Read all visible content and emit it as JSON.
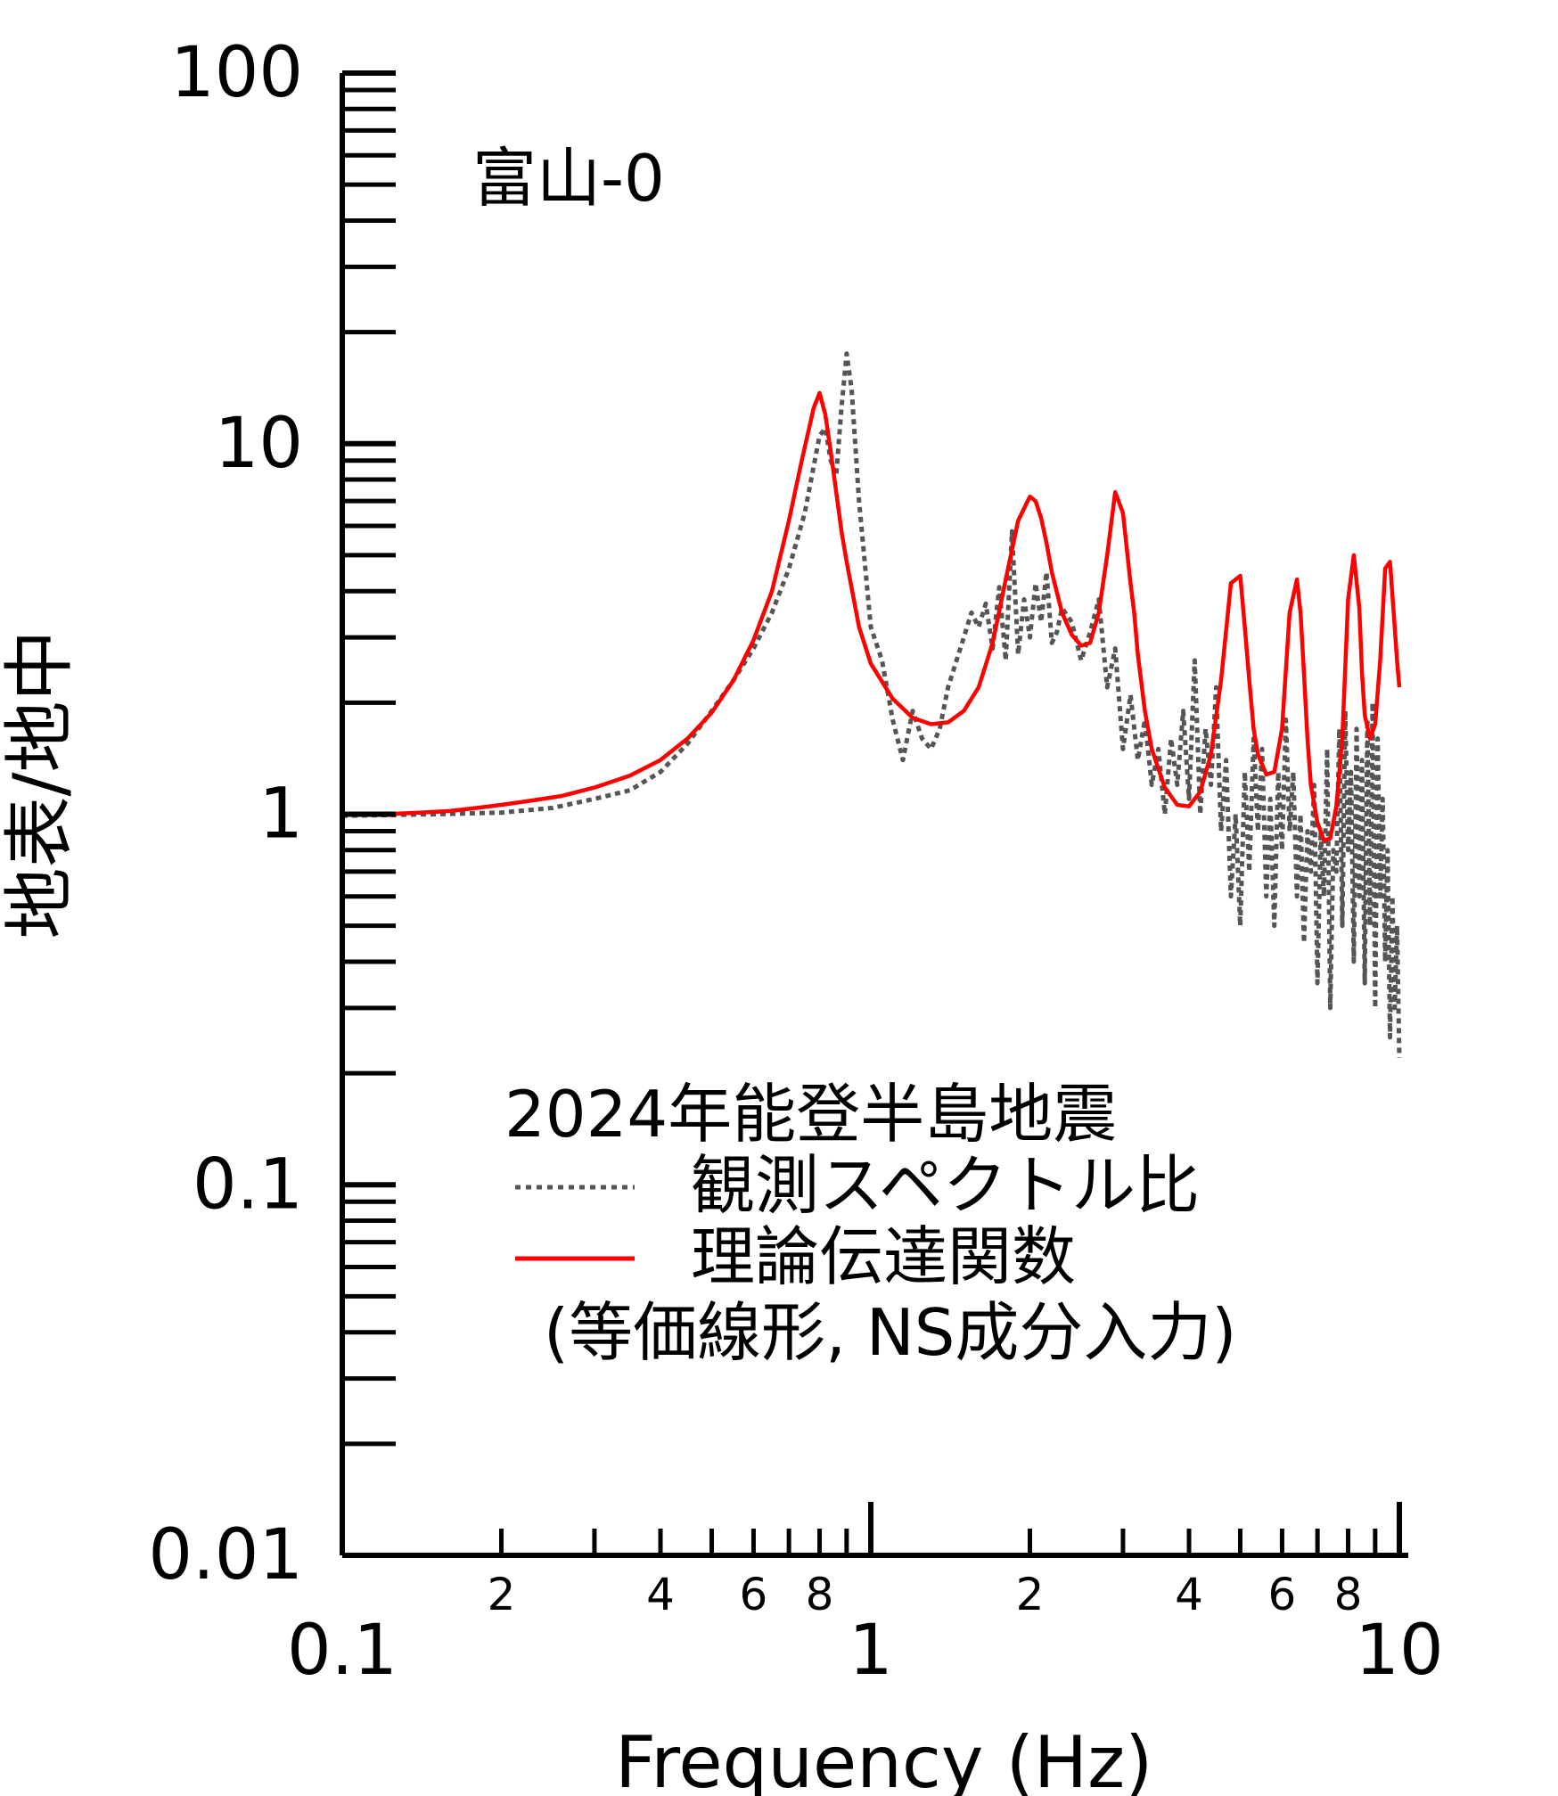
{
  "chart_data": {
    "type": "line",
    "title": "富山-0",
    "xlabel": "Frequency (Hz)",
    "ylabel": "地表/地中",
    "x_scale": "log",
    "y_scale": "log",
    "xlim": [
      0.1,
      10
    ],
    "ylim": [
      0.01,
      100
    ],
    "x_major_ticks": [
      {
        "value": 0.1,
        "label": "0.1"
      },
      {
        "value": 1,
        "label": "1"
      },
      {
        "value": 10,
        "label": "10"
      }
    ],
    "x_minor_labels": [
      {
        "value": 0.2,
        "label": "2"
      },
      {
        "value": 0.4,
        "label": "4"
      },
      {
        "value": 0.6,
        "label": "6"
      },
      {
        "value": 0.8,
        "label": "8"
      },
      {
        "value": 2,
        "label": "2"
      },
      {
        "value": 4,
        "label": "4"
      },
      {
        "value": 6,
        "label": "6"
      },
      {
        "value": 8,
        "label": "8"
      }
    ],
    "y_major_ticks": [
      {
        "value": 100,
        "label": "100"
      },
      {
        "value": 10,
        "label": "10"
      },
      {
        "value": 1,
        "label": "1"
      },
      {
        "value": 0.1,
        "label": "0.1"
      },
      {
        "value": 0.01,
        "label": "0.01"
      }
    ],
    "grid": false,
    "legend": {
      "title": "2024年能登半島地震",
      "placement": "bottom-center",
      "note": "(等価線形, NS成分入力)"
    },
    "series": [
      {
        "name": "観測スペクトル比",
        "color": "#555555",
        "style": "dotted",
        "x": [
          0.1,
          0.15,
          0.2,
          0.25,
          0.3,
          0.35,
          0.4,
          0.45,
          0.5,
          0.55,
          0.6,
          0.65,
          0.7,
          0.75,
          0.8,
          0.82,
          0.84,
          0.86,
          0.88,
          0.9,
          0.92,
          0.95,
          1.0,
          1.05,
          1.1,
          1.15,
          1.2,
          1.25,
          1.3,
          1.35,
          1.4,
          1.5,
          1.55,
          1.6,
          1.65,
          1.7,
          1.75,
          1.8,
          1.85,
          1.9,
          1.95,
          2.0,
          2.05,
          2.1,
          2.15,
          2.2,
          2.25,
          2.3,
          2.4,
          2.5,
          2.6,
          2.7,
          2.8,
          2.9,
          3.0,
          3.1,
          3.2,
          3.3,
          3.4,
          3.5,
          3.6,
          3.7,
          3.8,
          3.9,
          4.0,
          4.1,
          4.2,
          4.3,
          4.4,
          4.5,
          4.6,
          4.7,
          4.8,
          4.9,
          5.0,
          5.1,
          5.2,
          5.3,
          5.4,
          5.5,
          5.6,
          5.7,
          5.8,
          5.9,
          6.0,
          6.1,
          6.2,
          6.3,
          6.4,
          6.5,
          6.6,
          6.7,
          6.8,
          6.9,
          7.0,
          7.1,
          7.2,
          7.3,
          7.4,
          7.5,
          7.6,
          7.7,
          7.8,
          7.9,
          8.0,
          8.1,
          8.2,
          8.3,
          8.4,
          8.5,
          8.6,
          8.7,
          8.8,
          8.9,
          9.0,
          9.1,
          9.2,
          9.3,
          9.4,
          9.5,
          9.6,
          9.7,
          9.8,
          9.9,
          10.0
        ],
        "y": [
          0.99,
          1.0,
          1.01,
          1.04,
          1.1,
          1.16,
          1.3,
          1.55,
          1.9,
          2.3,
          2.8,
          3.5,
          4.6,
          6.5,
          10.5,
          11.0,
          9.0,
          8.2,
          12.5,
          17.5,
          14.0,
          7.0,
          3.2,
          2.6,
          1.8,
          1.4,
          1.9,
          1.6,
          1.5,
          1.7,
          2.2,
          3.0,
          3.5,
          3.2,
          3.7,
          2.8,
          4.1,
          2.6,
          5.8,
          2.7,
          3.8,
          3.0,
          4.2,
          3.3,
          4.5,
          2.9,
          3.1,
          3.6,
          3.3,
          2.6,
          3.1,
          3.8,
          2.2,
          2.8,
          1.5,
          2.1,
          1.4,
          1.8,
          1.2,
          1.5,
          1.0,
          1.6,
          1.2,
          1.9,
          1.1,
          2.6,
          1.0,
          1.7,
          1.2,
          2.2,
          0.9,
          1.4,
          0.6,
          1.0,
          0.5,
          1.3,
          0.7,
          1.6,
          0.9,
          1.5,
          0.6,
          1.1,
          0.5,
          1.3,
          0.8,
          1.8,
          0.9,
          1.3,
          0.6,
          1.0,
          0.45,
          0.9,
          0.7,
          1.2,
          0.35,
          0.9,
          0.6,
          1.5,
          0.3,
          0.8,
          0.7,
          1.7,
          0.5,
          1.9,
          0.8,
          1.3,
          0.4,
          1.7,
          0.6,
          1.4,
          0.35,
          1.8,
          0.5,
          2.0,
          0.3,
          1.6,
          0.6,
          1.1,
          0.4,
          0.8,
          0.25,
          0.6,
          0.3,
          0.5,
          0.22
        ]
      },
      {
        "name": "理論伝達関数",
        "color": "#ff0000",
        "style": "solid",
        "x": [
          0.1,
          0.12,
          0.14,
          0.16,
          0.18,
          0.2,
          0.23,
          0.26,
          0.3,
          0.35,
          0.4,
          0.45,
          0.5,
          0.55,
          0.6,
          0.65,
          0.7,
          0.74,
          0.78,
          0.8,
          0.82,
          0.84,
          0.86,
          0.88,
          0.9,
          0.95,
          1.0,
          1.1,
          1.2,
          1.3,
          1.4,
          1.5,
          1.6,
          1.7,
          1.8,
          1.9,
          2.0,
          2.05,
          2.1,
          2.15,
          2.2,
          2.3,
          2.4,
          2.5,
          2.6,
          2.7,
          2.8,
          2.9,
          3.0,
          3.1,
          3.15,
          3.2,
          3.3,
          3.4,
          3.6,
          3.8,
          4.0,
          4.2,
          4.4,
          4.6,
          4.8,
          5.0,
          5.1,
          5.2,
          5.3,
          5.4,
          5.6,
          5.8,
          6.0,
          6.2,
          6.4,
          6.5,
          6.6,
          6.7,
          6.8,
          7.0,
          7.2,
          7.4,
          7.6,
          7.8,
          8.0,
          8.2,
          8.4,
          8.5,
          8.6,
          8.8,
          9.0,
          9.2,
          9.4,
          9.6,
          9.8,
          9.9,
          10.0
        ],
        "y": [
          1.0,
          1.0,
          1.01,
          1.02,
          1.04,
          1.06,
          1.09,
          1.12,
          1.18,
          1.27,
          1.4,
          1.6,
          1.88,
          2.3,
          2.95,
          4.0,
          6.2,
          9.0,
          12.5,
          13.7,
          12.0,
          9.5,
          7.4,
          5.8,
          4.8,
          3.2,
          2.55,
          2.05,
          1.82,
          1.75,
          1.77,
          1.9,
          2.2,
          2.9,
          4.3,
          6.2,
          7.2,
          7.0,
          6.3,
          5.4,
          4.5,
          3.5,
          3.05,
          2.85,
          2.9,
          3.5,
          5.0,
          7.4,
          6.5,
          4.2,
          3.5,
          2.7,
          1.9,
          1.5,
          1.18,
          1.06,
          1.05,
          1.15,
          1.45,
          2.3,
          4.2,
          4.4,
          3.2,
          2.3,
          1.7,
          1.45,
          1.28,
          1.3,
          1.7,
          3.5,
          4.3,
          3.5,
          2.4,
          1.6,
          1.2,
          0.95,
          0.85,
          0.86,
          1.05,
          1.6,
          3.8,
          5.0,
          3.6,
          2.4,
          1.85,
          1.6,
          1.75,
          2.6,
          4.6,
          4.8,
          3.2,
          2.6,
          2.2
        ]
      }
    ]
  }
}
